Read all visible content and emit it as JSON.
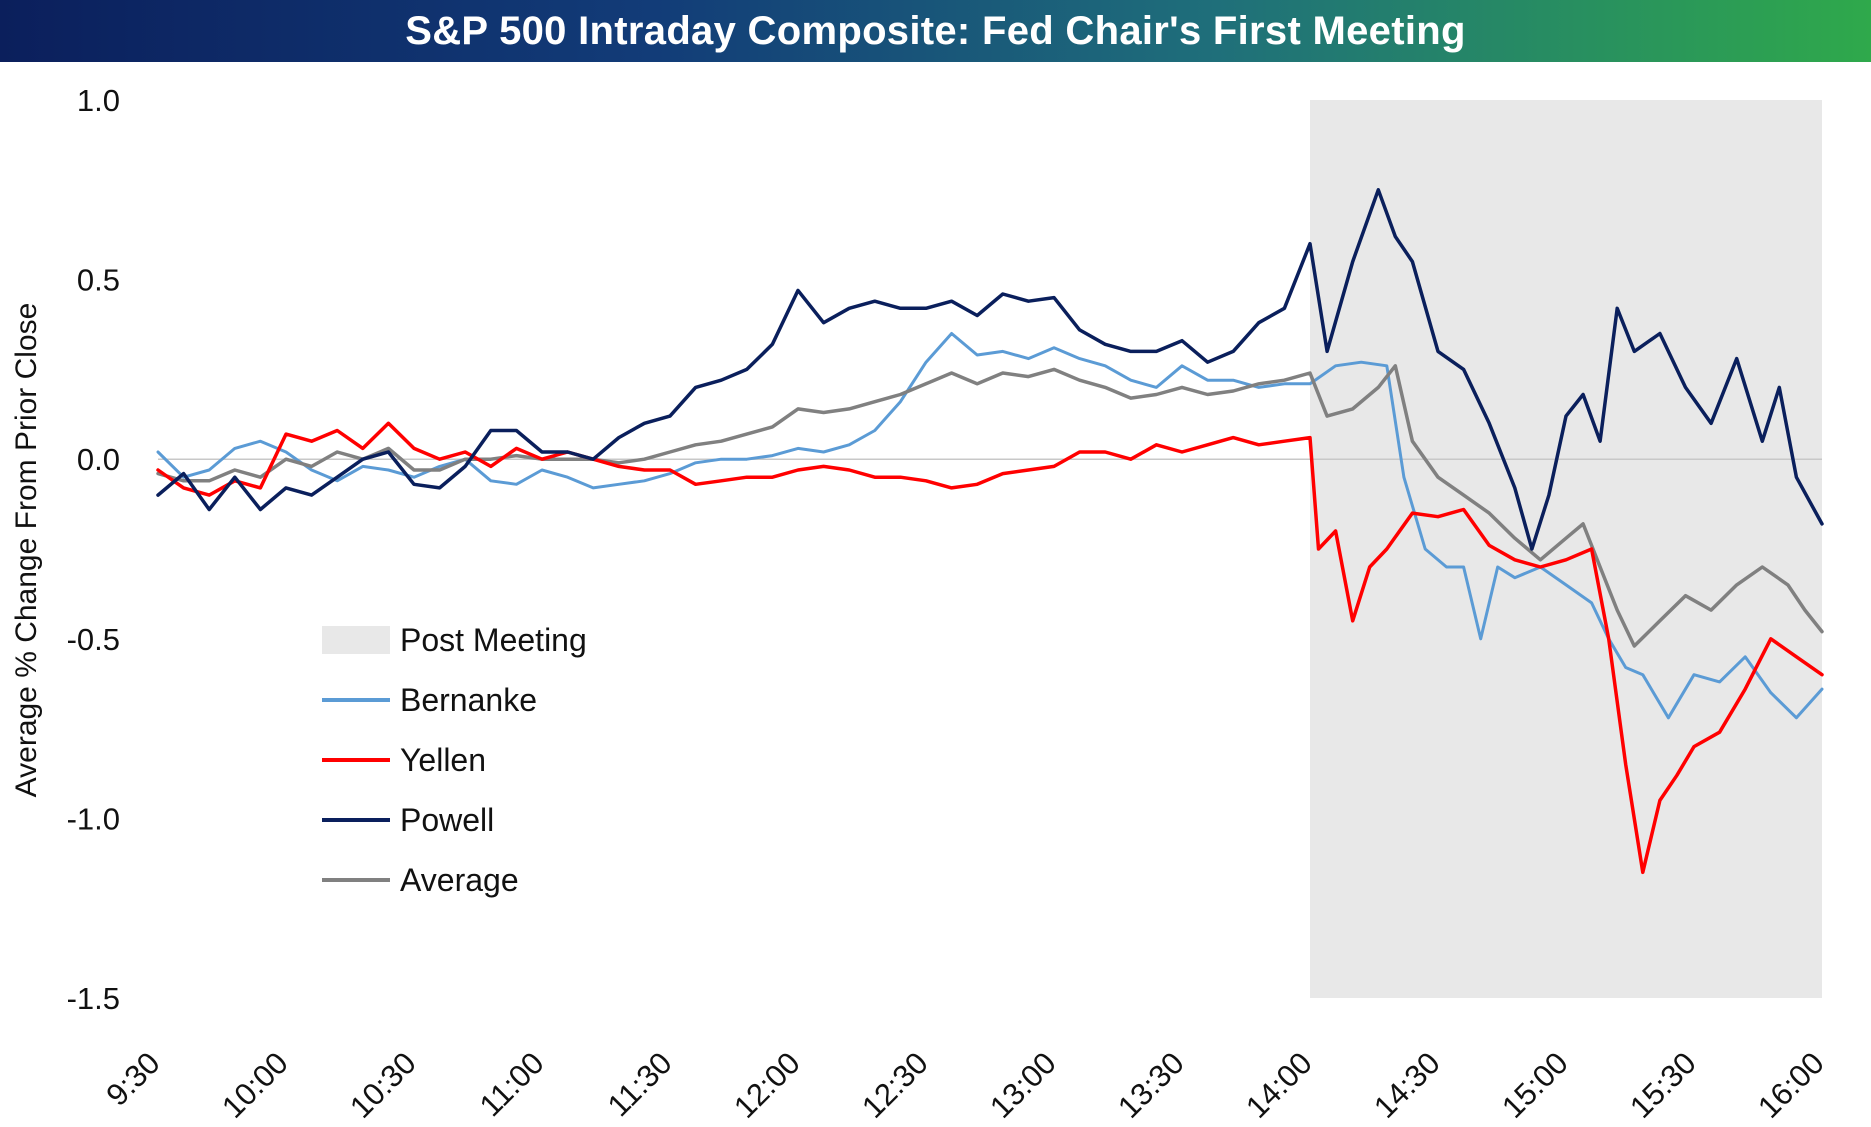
{
  "chart_data": {
    "type": "line",
    "title": "S&P 500 Intraday Composite: Fed Chair's First Meeting",
    "ylabel": "Average % Change From Prior Close",
    "xlabel": "",
    "ylim": [
      -1.5,
      1.0
    ],
    "yticks": [
      "1.0",
      "0.5",
      "0.0",
      "-0.5",
      "-1.0",
      "-1.5"
    ],
    "ytick_values": [
      1.0,
      0.5,
      0.0,
      -0.5,
      -1.0,
      -1.5
    ],
    "xticks": [
      "9:30",
      "10:00",
      "10:30",
      "11:00",
      "11:30",
      "12:00",
      "12:30",
      "13:00",
      "13:30",
      "14:00",
      "14:30",
      "15:00",
      "15:30",
      "16:00"
    ],
    "xlim_minutes": [
      0,
      390
    ],
    "shaded_region": {
      "label": "Post Meeting",
      "start": "14:00",
      "end": "16:00",
      "color": "#e8e8e8"
    },
    "zero_line": true,
    "grid": false,
    "legend_position": "lower-left",
    "series": [
      {
        "name": "Bernanke",
        "color": "#5b9bd5",
        "points": [
          [
            "9:30",
            0.02
          ],
          [
            "9:36",
            -0.05
          ],
          [
            "9:42",
            -0.03
          ],
          [
            "9:48",
            0.03
          ],
          [
            "9:54",
            0.05
          ],
          [
            "10:00",
            0.02
          ],
          [
            "10:06",
            -0.03
          ],
          [
            "10:12",
            -0.06
          ],
          [
            "10:18",
            -0.02
          ],
          [
            "10:24",
            -0.03
          ],
          [
            "10:30",
            -0.05
          ],
          [
            "10:36",
            -0.02
          ],
          [
            "10:42",
            0.0
          ],
          [
            "10:48",
            -0.06
          ],
          [
            "10:54",
            -0.07
          ],
          [
            "11:00",
            -0.03
          ],
          [
            "11:06",
            -0.05
          ],
          [
            "11:12",
            -0.08
          ],
          [
            "11:18",
            -0.07
          ],
          [
            "11:24",
            -0.06
          ],
          [
            "11:30",
            -0.04
          ],
          [
            "11:36",
            -0.01
          ],
          [
            "11:42",
            0.0
          ],
          [
            "11:48",
            0.0
          ],
          [
            "11:54",
            0.01
          ],
          [
            "12:00",
            0.03
          ],
          [
            "12:06",
            0.02
          ],
          [
            "12:12",
            0.04
          ],
          [
            "12:18",
            0.08
          ],
          [
            "12:24",
            0.16
          ],
          [
            "12:30",
            0.27
          ],
          [
            "12:36",
            0.35
          ],
          [
            "12:42",
            0.29
          ],
          [
            "12:48",
            0.3
          ],
          [
            "12:54",
            0.28
          ],
          [
            "13:00",
            0.31
          ],
          [
            "13:06",
            0.28
          ],
          [
            "13:12",
            0.26
          ],
          [
            "13:18",
            0.22
          ],
          [
            "13:24",
            0.2
          ],
          [
            "13:30",
            0.26
          ],
          [
            "13:36",
            0.22
          ],
          [
            "13:42",
            0.22
          ],
          [
            "13:48",
            0.2
          ],
          [
            "13:54",
            0.21
          ],
          [
            "14:00",
            0.21
          ],
          [
            "14:06",
            0.26
          ],
          [
            "14:12",
            0.27
          ],
          [
            "14:18",
            0.26
          ],
          [
            "14:22",
            -0.05
          ],
          [
            "14:27",
            -0.25
          ],
          [
            "14:32",
            -0.3
          ],
          [
            "14:36",
            -0.3
          ],
          [
            "14:40",
            -0.5
          ],
          [
            "14:44",
            -0.3
          ],
          [
            "14:48",
            -0.33
          ],
          [
            "14:54",
            -0.3
          ],
          [
            "15:00",
            -0.35
          ],
          [
            "15:06",
            -0.4
          ],
          [
            "15:10",
            -0.5
          ],
          [
            "15:14",
            -0.58
          ],
          [
            "15:18",
            -0.6
          ],
          [
            "15:24",
            -0.72
          ],
          [
            "15:30",
            -0.6
          ],
          [
            "15:36",
            -0.62
          ],
          [
            "15:42",
            -0.55
          ],
          [
            "15:48",
            -0.65
          ],
          [
            "15:54",
            -0.72
          ],
          [
            "16:00",
            -0.64
          ]
        ]
      },
      {
        "name": "Yellen",
        "color": "#ff0000",
        "points": [
          [
            "9:30",
            -0.03
          ],
          [
            "9:36",
            -0.08
          ],
          [
            "9:42",
            -0.1
          ],
          [
            "9:48",
            -0.06
          ],
          [
            "9:54",
            -0.08
          ],
          [
            "10:00",
            0.07
          ],
          [
            "10:06",
            0.05
          ],
          [
            "10:12",
            0.08
          ],
          [
            "10:18",
            0.03
          ],
          [
            "10:24",
            0.1
          ],
          [
            "10:30",
            0.03
          ],
          [
            "10:36",
            0.0
          ],
          [
            "10:42",
            0.02
          ],
          [
            "10:48",
            -0.02
          ],
          [
            "10:54",
            0.03
          ],
          [
            "11:00",
            0.0
          ],
          [
            "11:06",
            0.02
          ],
          [
            "11:12",
            0.0
          ],
          [
            "11:18",
            -0.02
          ],
          [
            "11:24",
            -0.03
          ],
          [
            "11:30",
            -0.03
          ],
          [
            "11:36",
            -0.07
          ],
          [
            "11:42",
            -0.06
          ],
          [
            "11:48",
            -0.05
          ],
          [
            "11:54",
            -0.05
          ],
          [
            "12:00",
            -0.03
          ],
          [
            "12:06",
            -0.02
          ],
          [
            "12:12",
            -0.03
          ],
          [
            "12:18",
            -0.05
          ],
          [
            "12:24",
            -0.05
          ],
          [
            "12:30",
            -0.06
          ],
          [
            "12:36",
            -0.08
          ],
          [
            "12:42",
            -0.07
          ],
          [
            "12:48",
            -0.04
          ],
          [
            "12:54",
            -0.03
          ],
          [
            "13:00",
            -0.02
          ],
          [
            "13:06",
            0.02
          ],
          [
            "13:12",
            0.02
          ],
          [
            "13:18",
            0.0
          ],
          [
            "13:24",
            0.04
          ],
          [
            "13:30",
            0.02
          ],
          [
            "13:36",
            0.04
          ],
          [
            "13:42",
            0.06
          ],
          [
            "13:48",
            0.04
          ],
          [
            "13:54",
            0.05
          ],
          [
            "14:00",
            0.06
          ],
          [
            "14:02",
            -0.25
          ],
          [
            "14:06",
            -0.2
          ],
          [
            "14:10",
            -0.45
          ],
          [
            "14:14",
            -0.3
          ],
          [
            "14:18",
            -0.25
          ],
          [
            "14:24",
            -0.15
          ],
          [
            "14:30",
            -0.16
          ],
          [
            "14:36",
            -0.14
          ],
          [
            "14:42",
            -0.24
          ],
          [
            "14:48",
            -0.28
          ],
          [
            "14:54",
            -0.3
          ],
          [
            "15:00",
            -0.28
          ],
          [
            "15:06",
            -0.25
          ],
          [
            "15:10",
            -0.5
          ],
          [
            "15:14",
            -0.85
          ],
          [
            "15:18",
            -1.15
          ],
          [
            "15:22",
            -0.95
          ],
          [
            "15:26",
            -0.88
          ],
          [
            "15:30",
            -0.8
          ],
          [
            "15:36",
            -0.76
          ],
          [
            "15:42",
            -0.64
          ],
          [
            "15:48",
            -0.5
          ],
          [
            "15:54",
            -0.55
          ],
          [
            "16:00",
            -0.6
          ]
        ]
      },
      {
        "name": "Powell",
        "color": "#0a1f5c",
        "points": [
          [
            "9:30",
            -0.1
          ],
          [
            "9:36",
            -0.04
          ],
          [
            "9:42",
            -0.14
          ],
          [
            "9:48",
            -0.05
          ],
          [
            "9:54",
            -0.14
          ],
          [
            "10:00",
            -0.08
          ],
          [
            "10:06",
            -0.1
          ],
          [
            "10:12",
            -0.05
          ],
          [
            "10:18",
            0.0
          ],
          [
            "10:24",
            0.02
          ],
          [
            "10:30",
            -0.07
          ],
          [
            "10:36",
            -0.08
          ],
          [
            "10:42",
            -0.02
          ],
          [
            "10:48",
            0.08
          ],
          [
            "10:54",
            0.08
          ],
          [
            "11:00",
            0.02
          ],
          [
            "11:06",
            0.02
          ],
          [
            "11:12",
            0.0
          ],
          [
            "11:18",
            0.06
          ],
          [
            "11:24",
            0.1
          ],
          [
            "11:30",
            0.12
          ],
          [
            "11:36",
            0.2
          ],
          [
            "11:42",
            0.22
          ],
          [
            "11:48",
            0.25
          ],
          [
            "11:54",
            0.32
          ],
          [
            "12:00",
            0.47
          ],
          [
            "12:06",
            0.38
          ],
          [
            "12:12",
            0.42
          ],
          [
            "12:18",
            0.44
          ],
          [
            "12:24",
            0.42
          ],
          [
            "12:30",
            0.42
          ],
          [
            "12:36",
            0.44
          ],
          [
            "12:42",
            0.4
          ],
          [
            "12:48",
            0.46
          ],
          [
            "12:54",
            0.44
          ],
          [
            "13:00",
            0.45
          ],
          [
            "13:06",
            0.36
          ],
          [
            "13:12",
            0.32
          ],
          [
            "13:18",
            0.3
          ],
          [
            "13:24",
            0.3
          ],
          [
            "13:30",
            0.33
          ],
          [
            "13:36",
            0.27
          ],
          [
            "13:42",
            0.3
          ],
          [
            "13:48",
            0.38
          ],
          [
            "13:54",
            0.42
          ],
          [
            "14:00",
            0.6
          ],
          [
            "14:04",
            0.3
          ],
          [
            "14:10",
            0.55
          ],
          [
            "14:16",
            0.75
          ],
          [
            "14:20",
            0.62
          ],
          [
            "14:24",
            0.55
          ],
          [
            "14:30",
            0.3
          ],
          [
            "14:36",
            0.25
          ],
          [
            "14:42",
            0.1
          ],
          [
            "14:48",
            -0.08
          ],
          [
            "14:52",
            -0.25
          ],
          [
            "14:56",
            -0.1
          ],
          [
            "15:00",
            0.12
          ],
          [
            "15:04",
            0.18
          ],
          [
            "15:08",
            0.05
          ],
          [
            "15:12",
            0.42
          ],
          [
            "15:16",
            0.3
          ],
          [
            "15:22",
            0.35
          ],
          [
            "15:28",
            0.2
          ],
          [
            "15:34",
            0.1
          ],
          [
            "15:40",
            0.28
          ],
          [
            "15:46",
            0.05
          ],
          [
            "15:50",
            0.2
          ],
          [
            "15:54",
            -0.05
          ],
          [
            "16:00",
            -0.18
          ]
        ]
      },
      {
        "name": "Average",
        "color": "#808080",
        "points": [
          [
            "9:30",
            -0.04
          ],
          [
            "9:36",
            -0.06
          ],
          [
            "9:42",
            -0.06
          ],
          [
            "9:48",
            -0.03
          ],
          [
            "9:54",
            -0.05
          ],
          [
            "10:00",
            0.0
          ],
          [
            "10:06",
            -0.02
          ],
          [
            "10:12",
            0.02
          ],
          [
            "10:18",
            0.0
          ],
          [
            "10:24",
            0.03
          ],
          [
            "10:30",
            -0.03
          ],
          [
            "10:36",
            -0.03
          ],
          [
            "10:42",
            0.0
          ],
          [
            "10:48",
            0.0
          ],
          [
            "10:54",
            0.01
          ],
          [
            "11:00",
            0.0
          ],
          [
            "11:06",
            0.0
          ],
          [
            "11:12",
            0.0
          ],
          [
            "11:18",
            -0.01
          ],
          [
            "11:24",
            0.0
          ],
          [
            "11:30",
            0.02
          ],
          [
            "11:36",
            0.04
          ],
          [
            "11:42",
            0.05
          ],
          [
            "11:48",
            0.07
          ],
          [
            "11:54",
            0.09
          ],
          [
            "12:00",
            0.14
          ],
          [
            "12:06",
            0.13
          ],
          [
            "12:12",
            0.14
          ],
          [
            "12:18",
            0.16
          ],
          [
            "12:24",
            0.18
          ],
          [
            "12:30",
            0.21
          ],
          [
            "12:36",
            0.24
          ],
          [
            "12:42",
            0.21
          ],
          [
            "12:48",
            0.24
          ],
          [
            "12:54",
            0.23
          ],
          [
            "13:00",
            0.25
          ],
          [
            "13:06",
            0.22
          ],
          [
            "13:12",
            0.2
          ],
          [
            "13:18",
            0.17
          ],
          [
            "13:24",
            0.18
          ],
          [
            "13:30",
            0.2
          ],
          [
            "13:36",
            0.18
          ],
          [
            "13:42",
            0.19
          ],
          [
            "13:48",
            0.21
          ],
          [
            "13:54",
            0.22
          ],
          [
            "14:00",
            0.24
          ],
          [
            "14:04",
            0.12
          ],
          [
            "14:10",
            0.14
          ],
          [
            "14:16",
            0.2
          ],
          [
            "14:20",
            0.26
          ],
          [
            "14:24",
            0.05
          ],
          [
            "14:30",
            -0.05
          ],
          [
            "14:36",
            -0.1
          ],
          [
            "14:42",
            -0.15
          ],
          [
            "14:48",
            -0.22
          ],
          [
            "14:54",
            -0.28
          ],
          [
            "15:00",
            -0.22
          ],
          [
            "15:04",
            -0.18
          ],
          [
            "15:08",
            -0.3
          ],
          [
            "15:12",
            -0.42
          ],
          [
            "15:16",
            -0.52
          ],
          [
            "15:22",
            -0.45
          ],
          [
            "15:28",
            -0.38
          ],
          [
            "15:34",
            -0.42
          ],
          [
            "15:40",
            -0.35
          ],
          [
            "15:46",
            -0.3
          ],
          [
            "15:52",
            -0.35
          ],
          [
            "15:56",
            -0.42
          ],
          [
            "16:00",
            -0.48
          ]
        ]
      }
    ]
  }
}
